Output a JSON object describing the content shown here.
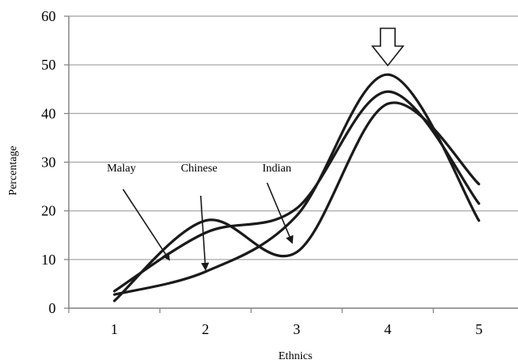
{
  "chart_data": {
    "type": "line",
    "title": "",
    "xlabel": "Ethnics",
    "ylabel": "Percentage",
    "categories": [
      "1",
      "2",
      "3",
      "4",
      "5"
    ],
    "x": [
      1,
      2,
      3,
      4,
      5
    ],
    "ylim": [
      0,
      60
    ],
    "yticks": [
      0,
      10,
      20,
      30,
      40,
      50,
      60
    ],
    "grid": "horizontal",
    "legend": "none",
    "series": [
      {
        "name": "Malay",
        "values": [
          3.5,
          15.5,
          20.5,
          44.5,
          21.5
        ]
      },
      {
        "name": "Chinese",
        "values": [
          2.8,
          7.5,
          19,
          48,
          18
        ]
      },
      {
        "name": "Indian",
        "values": [
          1.5,
          18,
          11.5,
          42,
          25.5
        ]
      }
    ],
    "annotations": [
      {
        "label": "Malay",
        "x": 1.6,
        "y": 10
      },
      {
        "label": "Chinese",
        "x": 2.0,
        "y": 8
      },
      {
        "label": "Indian",
        "x": 2.95,
        "y": 13.5
      }
    ],
    "highlight_arrow_x": 4
  },
  "colors": {
    "line": "#1a1a1a",
    "grid": "#b0b0b0",
    "axis": "#808080",
    "text": "#000000"
  }
}
